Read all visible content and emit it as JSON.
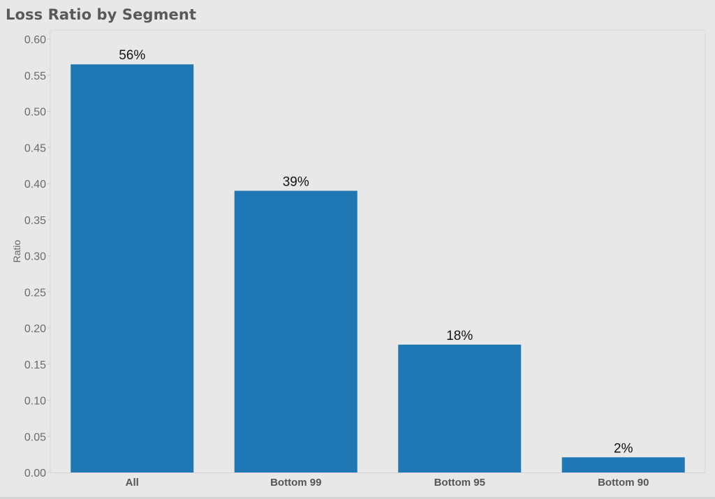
{
  "chart_data": {
    "type": "bar",
    "title": "Loss Ratio by Segment",
    "xlabel": "",
    "ylabel": "Ratio",
    "categories": [
      "All",
      "Bottom 99",
      "Bottom 95",
      "Bottom 90"
    ],
    "values": [
      0.565,
      0.39,
      0.177,
      0.021
    ],
    "data_labels": [
      "56%",
      "39%",
      "18%",
      "2%"
    ],
    "ylim": [
      0,
      0.6
    ],
    "yticks": [
      "0.60",
      "0.55",
      "0.50",
      "0.45",
      "0.40",
      "0.35",
      "0.30",
      "0.25",
      "0.20",
      "0.15",
      "0.10",
      "0.05",
      "0.00"
    ],
    "bar_color": "#1f77b4",
    "grid": false,
    "legend": "none"
  }
}
